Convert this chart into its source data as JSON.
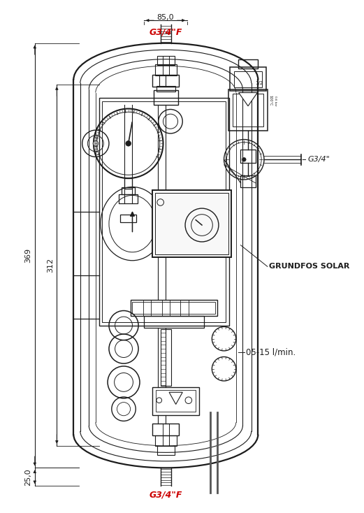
{
  "bg_color": "#ffffff",
  "lc": "#1c1c1c",
  "rc": "#cc0000",
  "dc": "#1c1c1c",
  "text_grundfos": "GRUNDFOS SOLAR",
  "text_flow": "05-15 l/min.",
  "text_g34f_top": "G3/4\"F",
  "text_g34f_bot": "G3/4\"F",
  "text_g34_right": "G3/4\"",
  "text_85": "85,0",
  "text_369": "369",
  "text_312": "312",
  "text_25": "25,0",
  "figsize": [
    5.21,
    7.34
  ],
  "dpi": 100
}
